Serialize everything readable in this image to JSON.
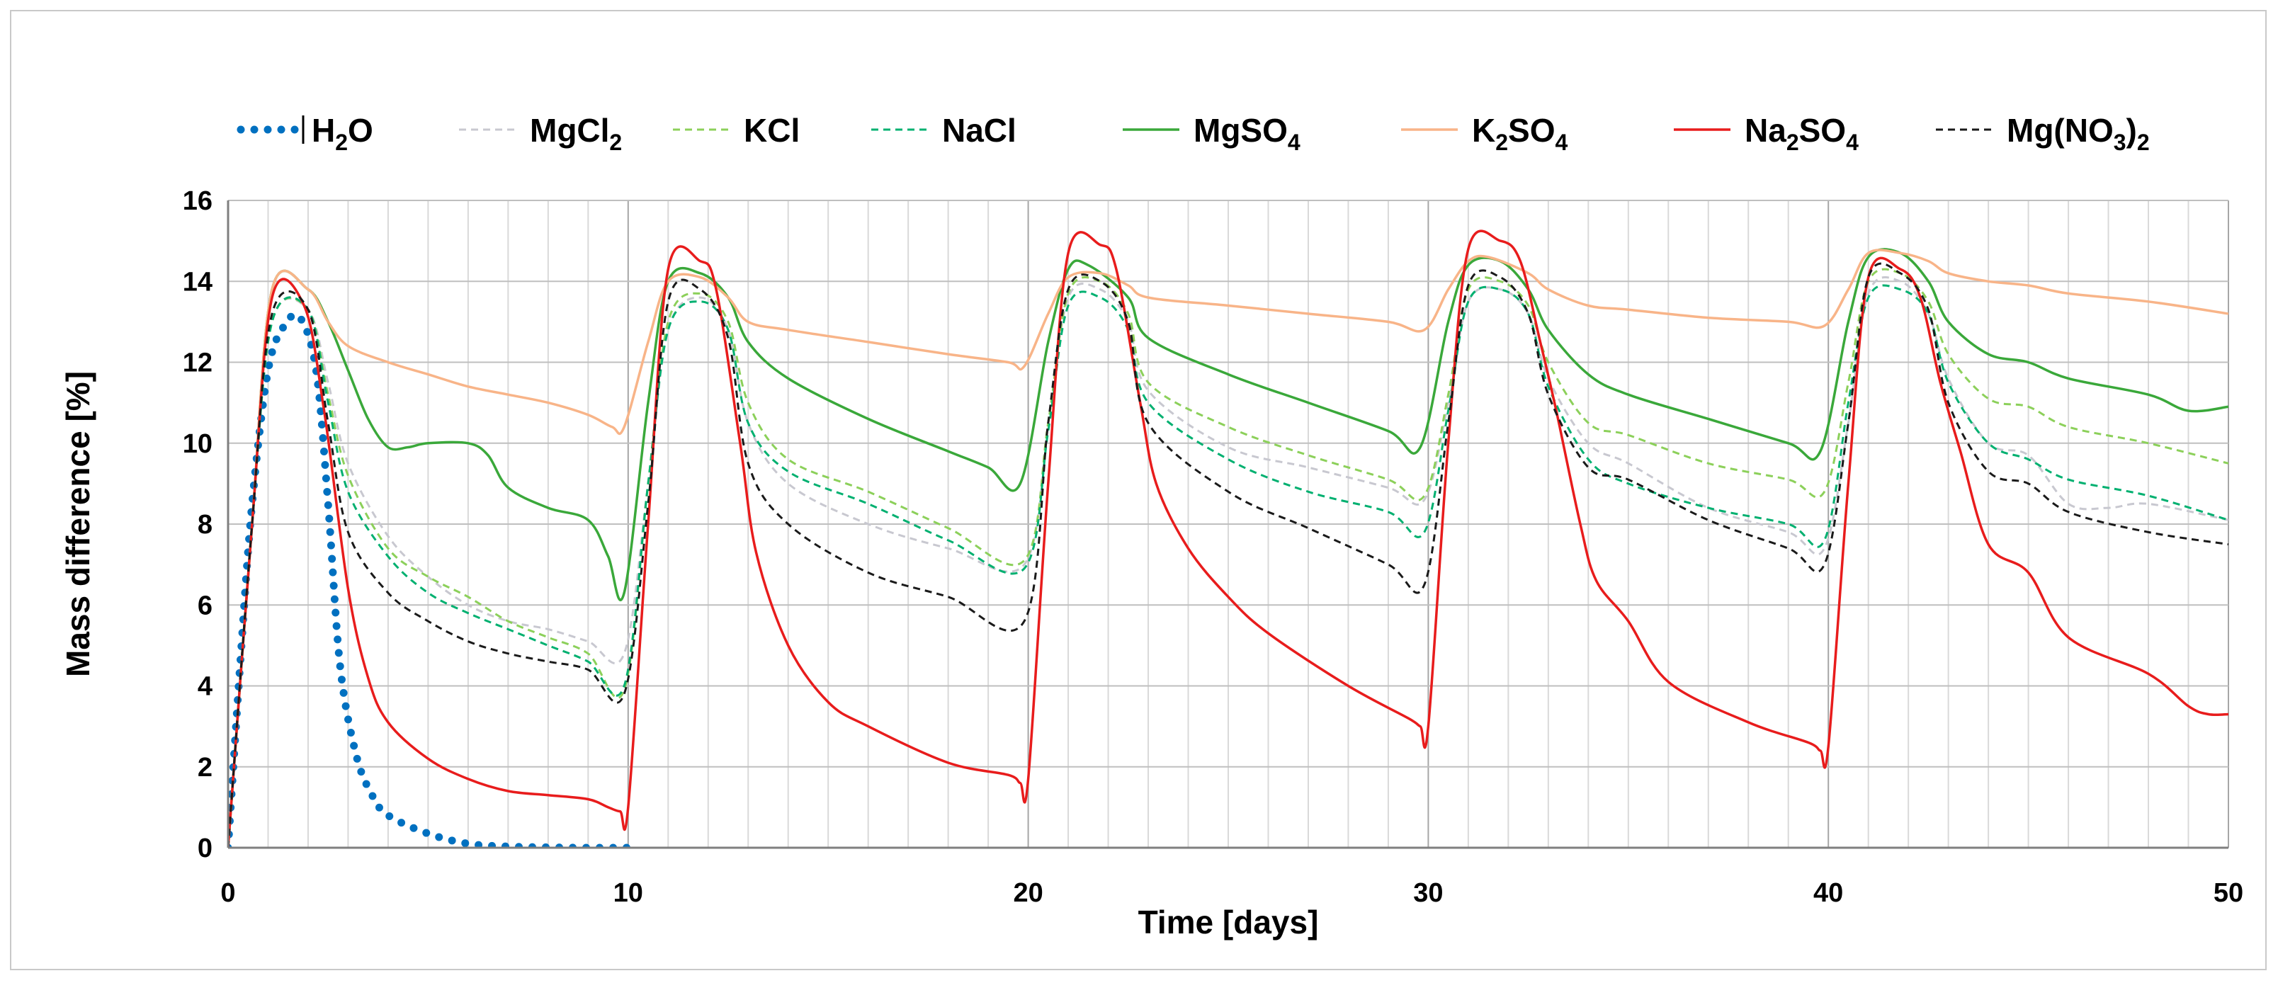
{
  "chart_data": {
    "type": "line",
    "title": "",
    "xlabel": "Time [days]",
    "ylabel": "Mass difference [%]",
    "xlim": [
      0,
      50
    ],
    "ylim": [
      0,
      16
    ],
    "xticks": [
      0,
      10,
      20,
      30,
      40,
      50
    ],
    "yticks": [
      0,
      2,
      4,
      6,
      8,
      10,
      12,
      14,
      16
    ],
    "x_minor_step": 1,
    "grid": true,
    "legend_position": "top",
    "series": [
      {
        "name": "H2O",
        "label_base": "H",
        "label_sub": "2",
        "label_tail": "O",
        "color": "#0070c0",
        "style": "dotted",
        "x": [
          0,
          0.3,
          0.6,
          1.0,
          1.4,
          1.8,
          2.2,
          2.5,
          2.8,
          3.2,
          3.6,
          4.0,
          5.0,
          6.0,
          7.0,
          8.0,
          9.0,
          10.0
        ],
        "y": [
          0,
          4.5,
          8.5,
          11.8,
          12.9,
          13.1,
          11.8,
          8.5,
          4.5,
          2.3,
          1.3,
          0.8,
          0.35,
          0.1,
          0.03,
          0.01,
          0,
          0
        ]
      },
      {
        "name": "MgCl2",
        "label_base": "MgCl",
        "label_sub": "2",
        "label_tail": "",
        "color": "#c8c8d0",
        "style": "dashed",
        "x": [
          0,
          0.6,
          1.1,
          2.0,
          2.5,
          3.0,
          4.0,
          5.0,
          6.0,
          7.0,
          8.0,
          9.0,
          9.9,
          10.5,
          11.0,
          11.8,
          12.5,
          13.0,
          14.0,
          16.0,
          18.0,
          19.9,
          20.5,
          21.0,
          21.8,
          22.5,
          23.0,
          25.0,
          27.0,
          29.0,
          29.9,
          30.5,
          31.0,
          31.8,
          32.5,
          33.0,
          34.0,
          35.0,
          37.0,
          39.0,
          39.9,
          40.5,
          41.0,
          41.8,
          42.5,
          43.0,
          44.0,
          45.0,
          46.0,
          47.0,
          48.0,
          50.0
        ],
        "y": [
          0,
          8.0,
          13.0,
          13.3,
          11.5,
          9.5,
          7.7,
          6.7,
          6.0,
          5.6,
          5.4,
          5.1,
          4.8,
          9.0,
          12.8,
          13.6,
          12.8,
          10.5,
          9.0,
          8.0,
          7.4,
          7.0,
          10.5,
          13.6,
          13.8,
          13.0,
          11.3,
          9.9,
          9.4,
          8.9,
          8.6,
          11.0,
          13.5,
          13.8,
          13.2,
          11.6,
          10.0,
          9.5,
          8.4,
          7.8,
          7.4,
          10.5,
          13.7,
          14.0,
          13.2,
          11.6,
          10.0,
          9.7,
          8.5,
          8.4,
          8.5,
          8.1
        ]
      },
      {
        "name": "KCl",
        "label_base": "KCl",
        "label_sub": "",
        "label_tail": "",
        "color": "#8cd05a",
        "style": "dashed",
        "x": [
          0,
          0.6,
          1.1,
          2.0,
          2.5,
          3.0,
          4.0,
          5.0,
          6.0,
          7.0,
          8.0,
          9.0,
          9.9,
          10.5,
          11.0,
          11.8,
          12.5,
          13.0,
          14.0,
          16.0,
          18.0,
          19.9,
          20.5,
          21.0,
          21.8,
          22.5,
          23.0,
          25.0,
          27.0,
          29.0,
          29.9,
          30.5,
          31.0,
          31.8,
          32.5,
          33.0,
          34.0,
          35.0,
          37.0,
          39.0,
          39.9,
          40.5,
          41.0,
          41.8,
          42.5,
          43.0,
          44.0,
          45.0,
          46.0,
          48.0,
          50.0
        ],
        "y": [
          0,
          8.0,
          13.0,
          13.3,
          11.2,
          9.2,
          7.4,
          6.7,
          6.2,
          5.6,
          5.2,
          4.8,
          3.9,
          9.0,
          13.0,
          13.7,
          13.0,
          11.0,
          9.6,
          8.8,
          7.9,
          7.1,
          10.5,
          13.7,
          14.0,
          13.2,
          11.5,
          10.4,
          9.7,
          9.1,
          8.7,
          11.2,
          13.8,
          14.0,
          13.4,
          12.0,
          10.5,
          10.2,
          9.5,
          9.1,
          8.8,
          11.5,
          14.0,
          14.2,
          13.5,
          12.2,
          11.1,
          10.9,
          10.4,
          10.0,
          9.5
        ]
      },
      {
        "name": "NaCl",
        "label_base": "NaCl",
        "label_sub": "",
        "label_tail": "",
        "color": "#00b070",
        "style": "dashed",
        "x": [
          0,
          0.6,
          1.1,
          2.0,
          2.5,
          3.0,
          4.0,
          5.0,
          6.0,
          7.0,
          8.0,
          9.0,
          9.9,
          10.5,
          11.0,
          11.8,
          12.5,
          13.0,
          14.0,
          16.0,
          18.0,
          19.9,
          20.5,
          21.0,
          21.8,
          22.5,
          23.0,
          25.0,
          27.0,
          29.0,
          29.9,
          30.5,
          31.0,
          31.8,
          32.5,
          33.0,
          34.0,
          35.0,
          37.0,
          39.0,
          39.9,
          40.5,
          41.0,
          41.8,
          42.5,
          43.0,
          44.0,
          45.0,
          46.0,
          48.0,
          50.0
        ],
        "y": [
          0,
          8.0,
          13.0,
          13.3,
          11.0,
          8.8,
          7.2,
          6.3,
          5.8,
          5.4,
          5.0,
          4.6,
          4.0,
          9.0,
          12.8,
          13.5,
          12.8,
          10.5,
          9.3,
          8.5,
          7.6,
          6.9,
          10.3,
          13.4,
          13.6,
          12.8,
          11.0,
          9.6,
          8.8,
          8.3,
          7.8,
          10.8,
          13.5,
          13.8,
          13.2,
          11.4,
          9.6,
          9.0,
          8.4,
          8.0,
          7.6,
          11.0,
          13.6,
          13.8,
          13.2,
          11.5,
          10.0,
          9.6,
          9.1,
          8.7,
          8.1
        ]
      },
      {
        "name": "MgSO4",
        "label_base": "MgSO",
        "label_sub": "4",
        "label_tail": "",
        "color": "#3aa83a",
        "style": "solid",
        "x": [
          0,
          0.6,
          1.1,
          2.0,
          2.5,
          3.0,
          3.5,
          4.0,
          4.5,
          5.0,
          6.0,
          6.5,
          7.0,
          8.0,
          9.0,
          9.5,
          9.9,
          10.5,
          11.0,
          11.8,
          12.5,
          13.0,
          14.0,
          16.0,
          18.0,
          19.0,
          19.8,
          20.5,
          21.0,
          21.5,
          22.5,
          23.0,
          25.0,
          27.0,
          29.0,
          29.8,
          30.5,
          31.0,
          31.8,
          32.5,
          33.0,
          34.0,
          35.0,
          37.0,
          39.0,
          39.8,
          40.5,
          41.0,
          41.8,
          42.5,
          43.0,
          44.0,
          45.0,
          46.0,
          48.0,
          49.0,
          50.0
        ],
        "y": [
          0,
          8.0,
          13.8,
          13.8,
          13.0,
          11.8,
          10.6,
          9.9,
          9.9,
          10.0,
          10.0,
          9.7,
          8.9,
          8.4,
          8.1,
          7.2,
          6.3,
          11.0,
          14.0,
          14.2,
          13.6,
          12.5,
          11.6,
          10.6,
          9.8,
          9.4,
          9.0,
          12.5,
          14.3,
          14.4,
          13.6,
          12.6,
          11.7,
          11.0,
          10.3,
          9.9,
          13.0,
          14.4,
          14.5,
          13.8,
          12.8,
          11.7,
          11.2,
          10.6,
          10.0,
          9.8,
          13.0,
          14.6,
          14.7,
          14.0,
          13.0,
          12.2,
          12.0,
          11.6,
          11.2,
          10.8,
          10.9
        ]
      },
      {
        "name": "K2SO4",
        "label_base": "K",
        "label_sub": "2",
        "label_tail": "SO4",
        "color": "#f8b488",
        "style": "solid",
        "x": [
          0,
          0.6,
          1.1,
          2.0,
          2.5,
          3.0,
          4.0,
          5.0,
          6.0,
          7.0,
          8.0,
          9.0,
          9.6,
          9.9,
          10.5,
          11.0,
          11.8,
          12.5,
          13.0,
          14.0,
          16.0,
          18.0,
          19.5,
          19.9,
          20.5,
          21.0,
          21.8,
          22.5,
          23.0,
          25.0,
          27.0,
          29.0,
          29.9,
          30.5,
          31.0,
          31.5,
          32.5,
          33.0,
          34.0,
          35.0,
          37.0,
          39.0,
          39.9,
          40.5,
          41.0,
          41.8,
          42.5,
          43.0,
          44.0,
          45.0,
          46.0,
          48.0,
          50.0
        ],
        "y": [
          0,
          8.0,
          13.8,
          13.8,
          13.0,
          12.4,
          12.0,
          11.7,
          11.4,
          11.2,
          11.0,
          10.7,
          10.4,
          10.4,
          12.5,
          14.0,
          14.1,
          13.6,
          13.0,
          12.8,
          12.5,
          12.2,
          12.0,
          11.9,
          13.2,
          14.1,
          14.2,
          13.9,
          13.6,
          13.4,
          13.2,
          13.0,
          12.8,
          13.8,
          14.5,
          14.6,
          14.2,
          13.8,
          13.4,
          13.3,
          13.1,
          13.0,
          12.9,
          13.8,
          14.7,
          14.7,
          14.5,
          14.2,
          14.0,
          13.9,
          13.7,
          13.5,
          13.2
        ]
      },
      {
        "name": "Na2SO4",
        "label_base": "Na",
        "label_sub": "2",
        "label_tail": "SO4",
        "color": "#e81c1c",
        "style": "solid",
        "x": [
          0,
          0.6,
          1.1,
          1.9,
          2.4,
          3.0,
          3.5,
          4.0,
          5.0,
          6.0,
          7.0,
          8.0,
          9.0,
          9.5,
          9.8,
          10.0,
          10.5,
          11.0,
          11.8,
          12.2,
          12.8,
          13.2,
          14.0,
          15.0,
          16.0,
          18.0,
          19.5,
          19.8,
          20.0,
          20.5,
          21.0,
          21.8,
          22.2,
          22.8,
          23.2,
          24.0,
          25.0,
          26.0,
          28.0,
          29.5,
          29.8,
          30.0,
          30.5,
          31.0,
          31.8,
          32.3,
          32.8,
          33.2,
          33.8,
          34.2,
          35.0,
          36.0,
          38.0,
          39.5,
          39.8,
          40.0,
          40.5,
          41.0,
          41.8,
          42.3,
          42.8,
          43.3,
          44.0,
          45.0,
          46.0,
          48.0,
          49.0,
          49.5,
          50.0
        ],
        "y": [
          0,
          8.0,
          13.6,
          13.4,
          10.8,
          6.4,
          4.2,
          3.1,
          2.2,
          1.7,
          1.4,
          1.3,
          1.2,
          1.0,
          0.9,
          1.0,
          8.0,
          14.3,
          14.5,
          13.8,
          10.0,
          7.3,
          5.0,
          3.6,
          3.0,
          2.1,
          1.8,
          1.6,
          1.7,
          9.0,
          14.7,
          14.9,
          14.3,
          11.0,
          9.0,
          7.4,
          6.2,
          5.3,
          4.0,
          3.2,
          3.0,
          3.0,
          10.0,
          14.8,
          15.0,
          14.5,
          12.5,
          10.8,
          8.0,
          6.6,
          5.6,
          4.1,
          3.1,
          2.6,
          2.4,
          2.5,
          9.0,
          14.1,
          14.3,
          13.6,
          11.5,
          9.8,
          7.5,
          6.8,
          5.2,
          4.3,
          3.5,
          3.3,
          3.3
        ]
      },
      {
        "name": "Mg(NO3)2",
        "label_base": "Mg(NO",
        "label_sub": "3",
        "label_tail": ")2",
        "color": "#1a1a1a",
        "style": "dashed",
        "x": [
          0,
          0.6,
          1.1,
          2.0,
          2.5,
          3.0,
          4.0,
          5.0,
          6.0,
          7.0,
          8.0,
          9.0,
          9.9,
          10.5,
          11.0,
          11.8,
          12.5,
          13.0,
          14.0,
          16.0,
          18.0,
          19.9,
          20.5,
          21.0,
          21.8,
          22.5,
          23.0,
          25.0,
          27.0,
          29.0,
          29.9,
          30.5,
          31.0,
          31.8,
          32.5,
          33.0,
          34.0,
          35.0,
          37.0,
          39.0,
          39.9,
          40.5,
          41.0,
          41.8,
          42.5,
          43.0,
          44.0,
          45.0,
          46.0,
          48.0,
          50.0
        ],
        "y": [
          0,
          8.0,
          13.2,
          13.3,
          10.5,
          7.8,
          6.3,
          5.6,
          5.1,
          4.8,
          4.6,
          4.4,
          3.8,
          8.5,
          13.5,
          13.8,
          12.6,
          9.5,
          8.0,
          6.8,
          6.2,
          5.6,
          10.5,
          13.8,
          14.0,
          13.0,
          10.5,
          8.8,
          7.9,
          7.0,
          6.5,
          10.5,
          13.9,
          14.1,
          13.2,
          11.2,
          9.4,
          9.1,
          8.1,
          7.4,
          7.0,
          10.5,
          14.1,
          14.2,
          13.3,
          11.0,
          9.3,
          9.0,
          8.3,
          7.8,
          7.5
        ]
      }
    ]
  }
}
